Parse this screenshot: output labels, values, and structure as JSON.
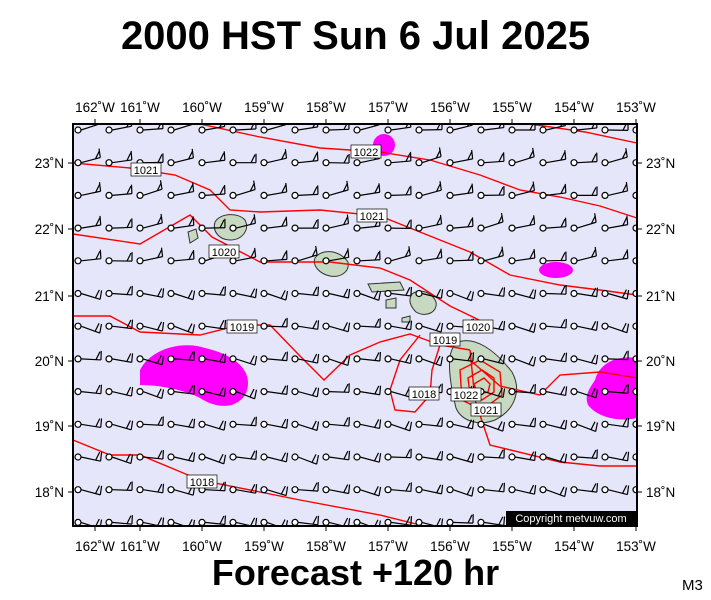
{
  "title": "2000 HST Sun 6 Jul 2025",
  "footer": "Forecast +120 hr",
  "model_code": "M3",
  "copyright": "Copyright metvuw.com",
  "colors": {
    "ocean": "#e6e6fa",
    "isobar": "#ff0000",
    "precip": "#ff00ff",
    "land": "#c7d9c0",
    "label_bg": "#ffffff"
  },
  "axes": {
    "lon_labels": [
      "162˚W",
      "161˚W",
      "160˚W",
      "159˚W",
      "158˚W",
      "157˚W",
      "156˚W",
      "155˚W",
      "154˚W",
      "153˚W"
    ],
    "lat_labels": [
      "23˚N",
      "22˚N",
      "21˚N",
      "20˚N",
      "19˚N",
      "18˚N"
    ]
  },
  "isobar_labels": [
    "1022",
    "1021",
    "1021",
    "1020",
    "1019",
    "1019",
    "1020",
    "1018",
    "1022",
    "1021",
    "1018"
  ],
  "features": [
    "wind-barbs",
    "isobars",
    "precipitation",
    "hawaiian-islands"
  ]
}
